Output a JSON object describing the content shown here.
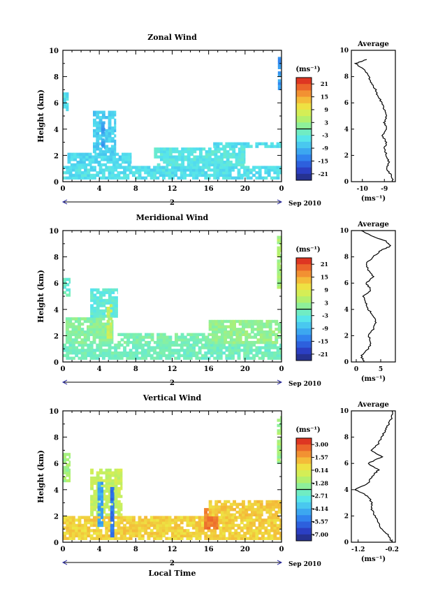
{
  "chart_data": [
    {
      "type": "heatmap",
      "title": "Zonal Wind",
      "xlabel": "",
      "ylabel": "Height (km)",
      "xlim": [
        0,
        24
      ],
      "ylim": [
        0,
        10
      ],
      "x_ticks": [
        "0",
        "4",
        "8",
        "12",
        "16",
        "20",
        "0"
      ],
      "y_ticks": [
        "0",
        "2",
        "4",
        "6",
        "8",
        "10"
      ],
      "date_label": "2",
      "month_year": "Sep 2010",
      "colorbar": {
        "unit_label": "(ms⁻¹)",
        "ticks": [
          "21",
          "15",
          "9",
          "3",
          "-3",
          "-9",
          "-15",
          "-21"
        ],
        "range": [
          -24,
          24
        ]
      },
      "patches": [
        {
          "t": [
            0,
            24
          ],
          "h": [
            0.2,
            1.2
          ],
          "value": -5
        },
        {
          "t": [
            0.5,
            7.5
          ],
          "h": [
            1.2,
            2.2
          ],
          "value": -6
        },
        {
          "t": [
            3.3,
            5.8
          ],
          "h": [
            2.2,
            5.4
          ],
          "value": -7
        },
        {
          "t": [
            4.2,
            4.6
          ],
          "h": [
            2.5,
            4.5
          ],
          "value": -11
        },
        {
          "t": [
            10,
            20
          ],
          "h": [
            1.2,
            2.6
          ],
          "value": -4
        },
        {
          "t": [
            16.5,
            24
          ],
          "h": [
            2.6,
            3.0
          ],
          "value": -5
        },
        {
          "t": [
            23.6,
            23.9
          ],
          "h": [
            7.0,
            9.5
          ],
          "value": -12
        },
        {
          "t": [
            0,
            0.6
          ],
          "h": [
            5.4,
            6.8
          ],
          "value": -5
        }
      ],
      "average_profile": {
        "title": "Average",
        "xlabel": "(ms⁻¹)",
        "x_ticks": [
          "-10",
          "-9"
        ],
        "xlim": [
          -10.5,
          -8.5
        ],
        "height": [
          0,
          0.5,
          1,
          1.5,
          2,
          2.5,
          3,
          3.5,
          4,
          4.5,
          5,
          5.5,
          6,
          6.5,
          7,
          7.5,
          8,
          8.5,
          9,
          9.3
        ],
        "value": [
          -8.6,
          -8.7,
          -8.9,
          -8.8,
          -8.9,
          -9.0,
          -8.9,
          -9.1,
          -8.9,
          -9.0,
          -8.9,
          -9.0,
          -9.1,
          -9.3,
          -9.4,
          -9.6,
          -9.7,
          -9.9,
          -10.3,
          -9.8
        ]
      }
    },
    {
      "type": "heatmap",
      "title": "Meridional Wind",
      "xlabel": "",
      "ylabel": "Height (km)",
      "xlim": [
        0,
        24
      ],
      "ylim": [
        0,
        10
      ],
      "x_ticks": [
        "0",
        "4",
        "8",
        "12",
        "16",
        "20",
        "0"
      ],
      "y_ticks": [
        "0",
        "2",
        "4",
        "6",
        "8",
        "10"
      ],
      "date_label": "2",
      "month_year": "Sep 2010",
      "colorbar": {
        "unit_label": "(ms⁻¹)",
        "ticks": [
          "21",
          "15",
          "9",
          "3",
          "-3",
          "-9",
          "-15",
          "-21"
        ],
        "range": [
          -24,
          24
        ]
      },
      "patches": [
        {
          "t": [
            0,
            24
          ],
          "h": [
            0.2,
            1.4
          ],
          "value": -1
        },
        {
          "t": [
            0.3,
            5.5
          ],
          "h": [
            1.4,
            3.4
          ],
          "value": 1
        },
        {
          "t": [
            3.0,
            6.0
          ],
          "h": [
            3.4,
            5.6
          ],
          "value": -3
        },
        {
          "t": [
            4.8,
            5.4
          ],
          "h": [
            1.8,
            4.4
          ],
          "value": 6
        },
        {
          "t": [
            6.0,
            16
          ],
          "h": [
            1.4,
            2.2
          ],
          "value": 0
        },
        {
          "t": [
            16,
            24
          ],
          "h": [
            1.4,
            3.2
          ],
          "value": 2
        },
        {
          "t": [
            0,
            0.8
          ],
          "h": [
            5.0,
            6.4
          ],
          "value": -2
        },
        {
          "t": [
            23.5,
            24
          ],
          "h": [
            5.6,
            9.6
          ],
          "value": 4
        }
      ],
      "average_profile": {
        "title": "Average",
        "xlabel": "(ms⁻¹)",
        "x_ticks": [
          "0",
          "5"
        ],
        "xlim": [
          -1,
          8
        ],
        "height": [
          0,
          0.5,
          1,
          1.5,
          2,
          2.5,
          3,
          3.5,
          4,
          4.5,
          5,
          5.5,
          6,
          6.5,
          7,
          7.5,
          8,
          8.5,
          8.8,
          9.2,
          9.6,
          10
        ],
        "value": [
          1.5,
          1.0,
          2.5,
          3.0,
          2.5,
          3.5,
          4.0,
          3.5,
          2.5,
          2.0,
          1.5,
          3.0,
          2.0,
          3.5,
          2.5,
          2.0,
          3.5,
          5.0,
          7.0,
          6.0,
          3.0,
          1.0
        ]
      }
    },
    {
      "type": "heatmap",
      "title": "Vertical Wind",
      "xlabel": "Local Time",
      "ylabel": "Height (km)",
      "xlim": [
        0,
        24
      ],
      "ylim": [
        0,
        10
      ],
      "x_ticks": [
        "0",
        "4",
        "8",
        "12",
        "16",
        "20",
        "0"
      ],
      "y_ticks": [
        "0",
        "2",
        "4",
        "6",
        "8",
        "10"
      ],
      "date_label": "2",
      "month_year": "Sep 2010",
      "colorbar": {
        "unit_label": "(ms⁻¹)",
        "ticks": [
          "3.00",
          "1.57",
          "0.14",
          "-1.28",
          "-2.71",
          "-4.14",
          "-5.57",
          "-7.00"
        ],
        "range": [
          -7.7,
          3.7
        ]
      },
      "patches": [
        {
          "t": [
            0,
            24
          ],
          "h": [
            0.2,
            2.0
          ],
          "value": 0.8
        },
        {
          "t": [
            3.0,
            6.5
          ],
          "h": [
            2.0,
            5.6
          ],
          "value": -0.5
        },
        {
          "t": [
            3.8,
            4.4
          ],
          "h": [
            1.2,
            4.6
          ],
          "value": -4.5
        },
        {
          "t": [
            5.2,
            5.6
          ],
          "h": [
            0.4,
            4.2
          ],
          "value": -5.5
        },
        {
          "t": [
            15.5,
            17
          ],
          "h": [
            1.0,
            2.6
          ],
          "value": 2.3
        },
        {
          "t": [
            16,
            24
          ],
          "h": [
            2.0,
            3.2
          ],
          "value": 0.9
        },
        {
          "t": [
            0,
            0.8
          ],
          "h": [
            4.6,
            6.8
          ],
          "value": -1.3
        },
        {
          "t": [
            23.5,
            24
          ],
          "h": [
            6.0,
            9.8
          ],
          "value": -1.3
        }
      ],
      "average_profile": {
        "title": "Average",
        "xlabel": "(ms⁻¹)",
        "x_ticks": [
          "-1.2",
          "-0.2"
        ],
        "xlim": [
          -1.4,
          -0.1
        ],
        "height": [
          0,
          0.5,
          1,
          1.5,
          2,
          2.5,
          3,
          3.5,
          4,
          4.5,
          5,
          5.5,
          6,
          6.5,
          7,
          7.5,
          8,
          8.5,
          9,
          9.5,
          10
        ],
        "value": [
          -0.2,
          -0.3,
          -0.5,
          -0.6,
          -0.7,
          -0.8,
          -0.8,
          -0.9,
          -1.3,
          -0.9,
          -0.8,
          -0.6,
          -0.9,
          -0.5,
          -0.8,
          -0.6,
          -0.5,
          -0.4,
          -0.3,
          -0.2,
          -0.2
        ]
      }
    }
  ]
}
